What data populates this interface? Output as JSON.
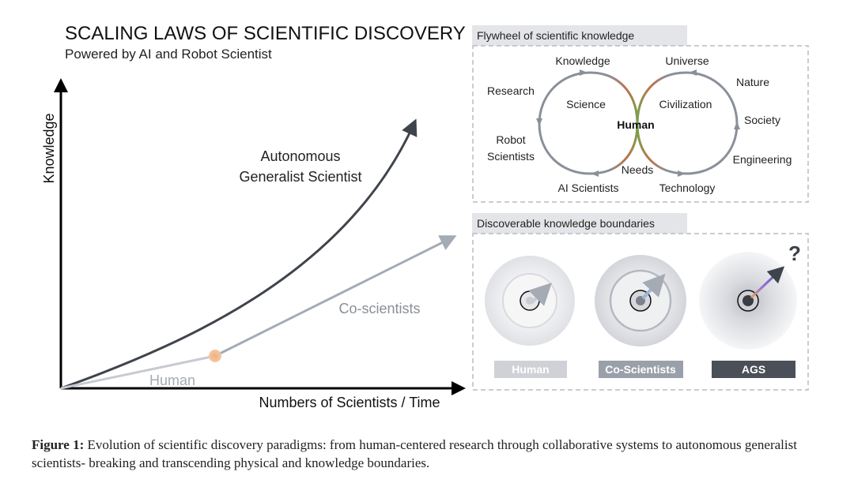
{
  "title": "SCALING LAWS OF SCIENTIFIC DISCOVERY",
  "subtitle": "Powered by AI and Robot Scientist",
  "axes": {
    "ylabel": "Knowledge",
    "xlabel": "Numbers of Scientists / Time"
  },
  "curves": {
    "ags_label_line1": "Autonomous",
    "ags_label_line2": "Generalist Scientist",
    "co_label": "Co-scientists",
    "human_label": "Human"
  },
  "flywheel": {
    "header": "Flywheel of scientific knowledge",
    "center": "Human",
    "left_inner": "Science",
    "right_inner": "Civilization",
    "knowledge": "Knowledge",
    "research": "Research",
    "robot_line1": "Robot",
    "robot_line2": "Scientists",
    "ai_scientists": "AI Scientists",
    "needs": "Needs",
    "universe": "Universe",
    "nature": "Nature",
    "society": "Society",
    "engineering": "Engineering",
    "technology": "Technology"
  },
  "boundaries": {
    "header": "Discoverable knowledge boundaries",
    "question_mark": "?",
    "labels": [
      "Human",
      "Co-Scientists",
      "AGS"
    ],
    "label_colors": [
      "#cfd1d6",
      "#9aa0aa",
      "#4a4f58"
    ]
  },
  "caption": {
    "label": "Figure 1:",
    "text": " Evolution of scientific discovery paradigms: from human-centered research through collaborative systems to autonomous generalist scientists- breaking and transcending physical and knowledge boundaries."
  }
}
